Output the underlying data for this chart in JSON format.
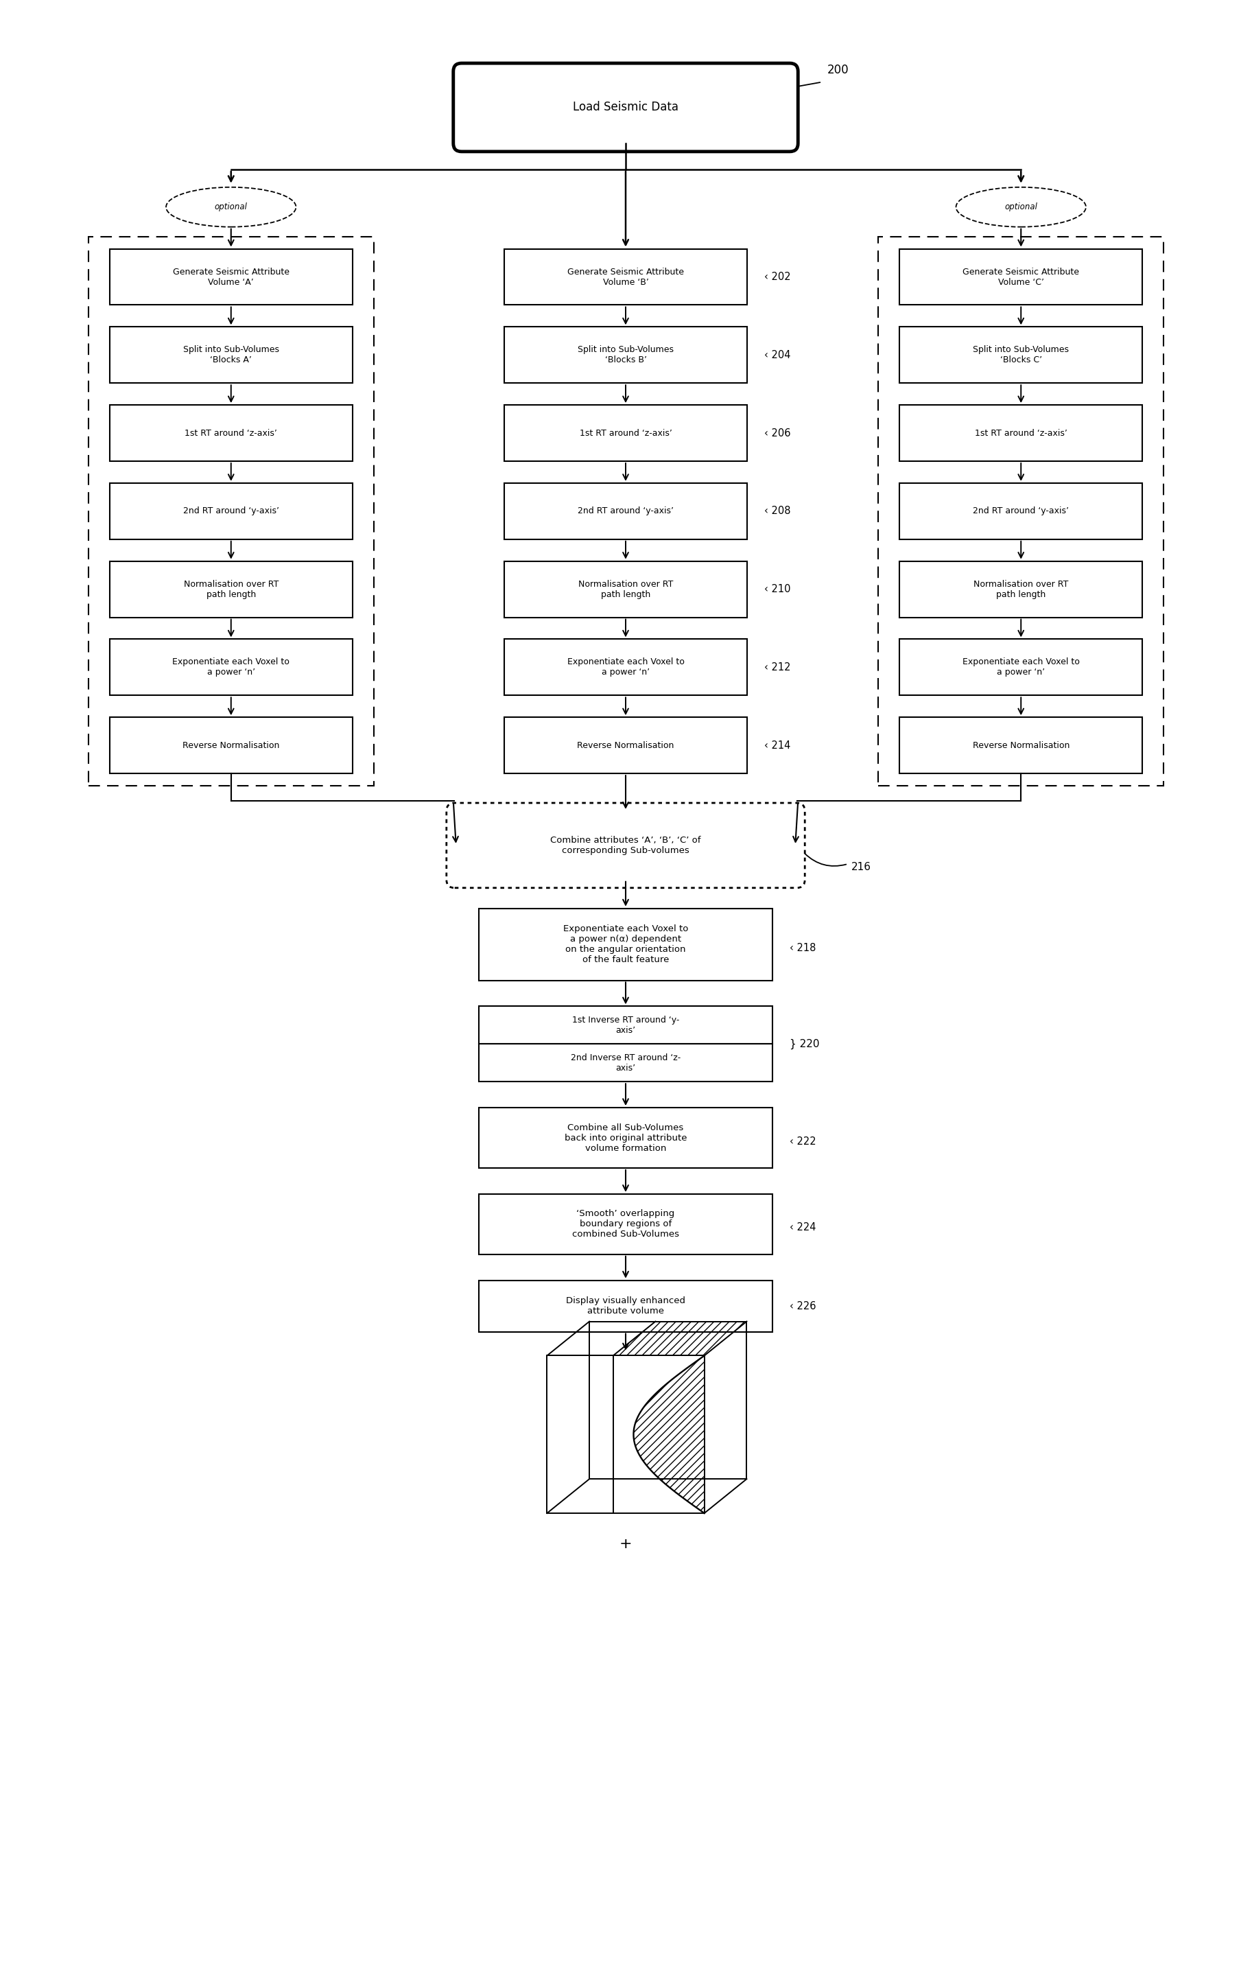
{
  "top_box": {
    "label": "Load Seismic Data",
    "number": "200"
  },
  "col_A": {
    "optional_label": "optional",
    "boxes": [
      "Generate Seismic Attribute\nVolume ‘A’",
      "Split into Sub-Volumes\n‘Blocks A’",
      "1st RT around ‘z-axis’",
      "2nd RT around ‘y-axis’",
      "Normalisation over RT\npath length",
      "Exponentiate each Voxel to\na power ‘n’",
      "Reverse Normalisation"
    ]
  },
  "col_B": {
    "boxes": [
      "Generate Seismic Attribute\nVolume ‘B’",
      "Split into Sub-Volumes\n‘Blocks B’",
      "1st RT around ‘z-axis’",
      "2nd RT around ‘y-axis’",
      "Normalisation over RT\npath length",
      "Exponentiate each Voxel to\na power ‘n’",
      "Reverse Normalisation"
    ],
    "numbers": [
      "202",
      "204",
      "206",
      "208",
      "210",
      "212",
      "214"
    ]
  },
  "col_C": {
    "optional_label": "optional",
    "boxes": [
      "Generate Seismic Attribute\nVolume ‘C’",
      "Split into Sub-Volumes\n‘Blocks C’",
      "1st RT around ‘z-axis’",
      "2nd RT around ‘y-axis’",
      "Normalisation over RT\npath length",
      "Exponentiate each Voxel to\na power ‘n’",
      "Reverse Normalisation"
    ]
  },
  "bottom_boxes": [
    {
      "label": "Combine attributes ‘A’, ‘B’, ‘C’ of\ncorresponding Sub-volumes",
      "number": "216",
      "style": "rounded_dotted"
    },
    {
      "label": "Exponentiate each Voxel to\na power n(α) dependent\non the angular orientation\nof the fault feature",
      "number": "218",
      "style": "plain"
    },
    {
      "label": "1st Inverse RT around ‘y-\naxis’\n2nd Inverse RT around ‘z-\naxis’",
      "number": "220",
      "style": "split"
    },
    {
      "label": "Combine all Sub-Volumes\nback into original attribute\nvolume formation",
      "number": "222",
      "style": "plain"
    },
    {
      "label": "‘Smooth’ overlapping\nboundary regions of\ncombined Sub-Volumes",
      "number": "224",
      "style": "plain"
    },
    {
      "label": "Display visually enhanced\nattribute volume",
      "number": "226",
      "style": "plain"
    }
  ]
}
